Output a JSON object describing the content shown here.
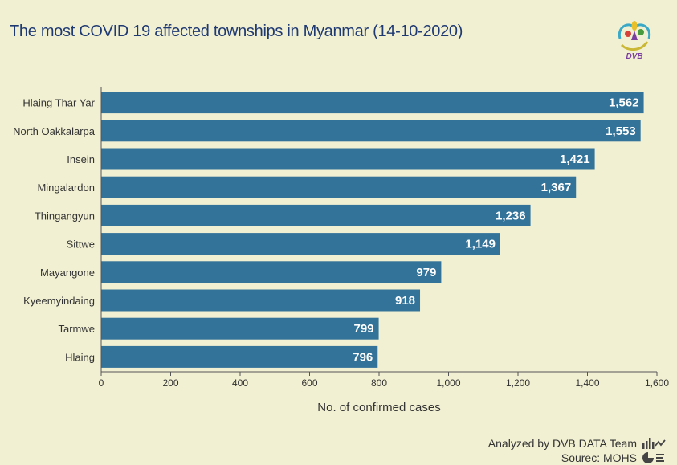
{
  "title": "The most COVID 19 affected townships in Myanmar (14-10-2020)",
  "logo": {
    "text": "DVB"
  },
  "footer": {
    "analyzed_by": "Analyzed by DVB DATA Team",
    "source": "Sourec: MOHS"
  },
  "colors": {
    "bar": "#33739a",
    "background": "#f2f0d2",
    "title": "#1f3a73",
    "axis": "#555555"
  },
  "chart_data": {
    "type": "bar",
    "orientation": "horizontal",
    "title": "The most COVID 19 affected townships in Myanmar (14-10-2020)",
    "xlabel": "No. of confirmed cases",
    "ylabel": "",
    "categories": [
      "Hlaing Thar Yar",
      "North Oakkalarpa",
      "Insein",
      "Mingalardon",
      "Thingangyun",
      "Sittwe",
      "Mayangone",
      "Kyeemyindaing",
      "Tarmwe",
      "Hlaing"
    ],
    "values": [
      1562,
      1553,
      1421,
      1367,
      1236,
      1149,
      979,
      918,
      799,
      796
    ],
    "value_labels": [
      "1,562",
      "1,553",
      "1,421",
      "1,367",
      "1,236",
      "1,149",
      "979",
      "918",
      "799",
      "796"
    ],
    "xlim": [
      0,
      1600
    ],
    "xticks": [
      0,
      200,
      400,
      600,
      800,
      1000,
      1200,
      1400,
      1600
    ],
    "xtick_labels": [
      "0",
      "200",
      "400",
      "600",
      "800",
      "1,000",
      "1,200",
      "1,400",
      "1,600"
    ],
    "grid": false,
    "legend": "none"
  }
}
